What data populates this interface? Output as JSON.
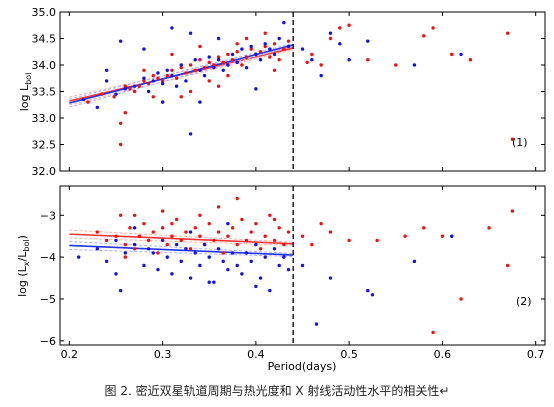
{
  "caption": "图 2. 密近双星轨道周期与热光度和 X 射线活动性水平的相关性↵",
  "colors": {
    "series_a": "#ee1111",
    "series_b": "#1111ee",
    "fit_a": "#ff3333",
    "fit_b": "#2233ee",
    "fit_band_a": "#ffaaaa",
    "fit_band_b": "#aab0ff",
    "cutoff": "#000000"
  },
  "chart_data": [
    {
      "type": "scatter",
      "panel_label": "(1)",
      "xlabel": "",
      "ylabel": "log L_bol",
      "xlim": [
        0.19,
        0.71
      ],
      "ylim": [
        32.0,
        35.0
      ],
      "yticks": [
        "32.0",
        "32.5",
        "33.0",
        "33.5",
        "34.0",
        "34.5",
        "35.0"
      ],
      "xticks": [],
      "cutoff_x": 0.44,
      "series": [
        {
          "color": "red",
          "x": [
            0.22,
            0.235,
            0.248,
            0.255,
            0.26,
            0.265,
            0.27,
            0.275,
            0.28,
            0.285,
            0.29,
            0.295,
            0.3,
            0.305,
            0.31,
            0.315,
            0.32,
            0.325,
            0.33,
            0.335,
            0.34,
            0.345,
            0.35,
            0.355,
            0.36,
            0.365,
            0.37,
            0.375,
            0.38,
            0.385,
            0.39,
            0.395,
            0.4,
            0.405,
            0.41,
            0.415,
            0.42,
            0.425,
            0.43,
            0.435,
            0.455,
            0.46,
            0.47,
            0.48,
            0.49,
            0.5,
            0.52,
            0.55,
            0.58,
            0.59,
            0.61,
            0.63,
            0.67,
            0.675,
            0.3,
            0.32,
            0.34,
            0.36,
            0.38,
            0.26,
            0.28,
            0.33,
            0.37,
            0.41,
            0.255,
            0.29,
            0.31,
            0.35,
            0.39,
            0.42
          ],
          "y": [
            33.3,
            33.45,
            33.4,
            32.9,
            33.6,
            33.55,
            33.5,
            33.6,
            33.7,
            33.65,
            33.8,
            33.75,
            33.7,
            33.8,
            33.9,
            33.75,
            33.95,
            33.85,
            34.0,
            33.9,
            34.1,
            33.95,
            34.05,
            34.0,
            34.15,
            34.05,
            34.2,
            34.1,
            34.25,
            34.0,
            34.15,
            34.3,
            34.2,
            34.25,
            34.35,
            34.15,
            34.4,
            34.1,
            34.3,
            34.45,
            34.05,
            34.2,
            34.0,
            34.5,
            34.7,
            34.75,
            34.1,
            34.0,
            34.55,
            34.7,
            34.2,
            34.1,
            34.6,
            32.6,
            33.3,
            33.4,
            34.35,
            33.6,
            34.4,
            33.1,
            33.9,
            33.5,
            33.8,
            34.6,
            32.5,
            33.4,
            34.2,
            33.7,
            34.5,
            33.9
          ]
        },
        {
          "color": "blue",
          "x": [
            0.215,
            0.23,
            0.24,
            0.25,
            0.255,
            0.26,
            0.27,
            0.28,
            0.285,
            0.29,
            0.295,
            0.3,
            0.305,
            0.31,
            0.315,
            0.32,
            0.325,
            0.33,
            0.335,
            0.34,
            0.345,
            0.35,
            0.355,
            0.36,
            0.365,
            0.37,
            0.375,
            0.38,
            0.385,
            0.39,
            0.395,
            0.4,
            0.405,
            0.41,
            0.415,
            0.42,
            0.425,
            0.43,
            0.435,
            0.45,
            0.46,
            0.47,
            0.48,
            0.49,
            0.5,
            0.52,
            0.57,
            0.62,
            0.3,
            0.34,
            0.33,
            0.24,
            0.28,
            0.36,
            0.4,
            0.31
          ],
          "y": [
            33.35,
            33.2,
            33.7,
            33.45,
            34.45,
            33.55,
            33.6,
            33.75,
            33.5,
            33.7,
            33.85,
            33.65,
            33.9,
            33.8,
            33.6,
            34.0,
            33.7,
            32.7,
            34.1,
            33.9,
            33.8,
            34.15,
            33.95,
            34.1,
            33.9,
            34.0,
            34.2,
            34.05,
            34.3,
            33.95,
            34.35,
            34.2,
            34.1,
            34.4,
            34.3,
            34.2,
            34.5,
            34.8,
            34.35,
            34.3,
            34.1,
            33.8,
            34.6,
            34.4,
            34.1,
            34.45,
            34.0,
            34.2,
            33.3,
            33.3,
            34.6,
            33.9,
            34.3,
            34.5,
            33.55,
            34.7
          ]
        }
      ],
      "fits": [
        {
          "color": "red",
          "x": [
            0.2,
            0.44
          ],
          "y": [
            33.32,
            34.32
          ]
        },
        {
          "color": "blue",
          "x": [
            0.2,
            0.44
          ],
          "y": [
            33.28,
            34.38
          ]
        }
      ]
    },
    {
      "type": "scatter",
      "panel_label": "(2)",
      "xlabel": "Period(days)",
      "ylabel": "log (L_x/L_bol)",
      "xlim": [
        0.19,
        0.71
      ],
      "ylim": [
        -6.1,
        -2.3
      ],
      "yticks": [
        "−6",
        "−5",
        "−4",
        "−3"
      ],
      "xticks": [
        "0.2",
        "0.3",
        "0.4",
        "0.5",
        "0.6",
        "0.7"
      ],
      "cutoff_x": 0.44,
      "series": [
        {
          "color": "red",
          "x": [
            0.23,
            0.24,
            0.25,
            0.255,
            0.26,
            0.265,
            0.27,
            0.275,
            0.28,
            0.285,
            0.29,
            0.295,
            0.3,
            0.305,
            0.31,
            0.315,
            0.32,
            0.325,
            0.33,
            0.335,
            0.34,
            0.345,
            0.35,
            0.355,
            0.36,
            0.365,
            0.37,
            0.375,
            0.38,
            0.385,
            0.39,
            0.395,
            0.4,
            0.405,
            0.41,
            0.415,
            0.42,
            0.425,
            0.43,
            0.435,
            0.45,
            0.46,
            0.47,
            0.48,
            0.5,
            0.53,
            0.56,
            0.58,
            0.6,
            0.62,
            0.65,
            0.67,
            0.675,
            0.59,
            0.27,
            0.31,
            0.36,
            0.26,
            0.3,
            0.34,
            0.38,
            0.42
          ],
          "y": [
            -3.4,
            -3.6,
            -3.5,
            -3.0,
            -3.7,
            -3.3,
            -3.8,
            -3.5,
            -3.2,
            -3.6,
            -3.4,
            -3.9,
            -3.3,
            -3.7,
            -3.5,
            -3.1,
            -3.6,
            -3.4,
            -3.8,
            -3.3,
            -3.5,
            -3.7,
            -3.2,
            -3.6,
            -3.4,
            -3.9,
            -3.5,
            -3.3,
            -3.7,
            -3.1,
            -3.6,
            -3.4,
            -3.2,
            -3.8,
            -3.5,
            -3.0,
            -3.6,
            -3.3,
            -3.7,
            -3.4,
            -3.5,
            -3.7,
            -3.2,
            -3.4,
            -3.6,
            -3.6,
            -3.5,
            -3.3,
            -3.5,
            -5.0,
            -3.3,
            -4.2,
            -2.9,
            -5.8,
            -3.0,
            -3.2,
            -2.8,
            -4.0,
            -2.9,
            -3.0,
            -2.6,
            -3.1
          ]
        },
        {
          "color": "blue",
          "x": [
            0.21,
            0.23,
            0.24,
            0.25,
            0.255,
            0.26,
            0.27,
            0.28,
            0.285,
            0.29,
            0.295,
            0.3,
            0.305,
            0.31,
            0.315,
            0.32,
            0.325,
            0.33,
            0.335,
            0.34,
            0.345,
            0.35,
            0.355,
            0.36,
            0.365,
            0.37,
            0.375,
            0.38,
            0.385,
            0.39,
            0.395,
            0.4,
            0.405,
            0.41,
            0.415,
            0.42,
            0.425,
            0.43,
            0.435,
            0.45,
            0.465,
            0.48,
            0.52,
            0.525,
            0.57,
            0.61,
            0.27,
            0.33,
            0.37,
            0.25,
            0.35,
            0.4
          ],
          "y": [
            -4.0,
            -3.8,
            -4.1,
            -3.6,
            -4.8,
            -3.9,
            -3.7,
            -4.2,
            -3.8,
            -3.9,
            -4.3,
            -3.6,
            -4.0,
            -4.4,
            -3.7,
            -4.1,
            -3.8,
            -4.5,
            -3.9,
            -4.2,
            -3.7,
            -4.0,
            -4.6,
            -3.8,
            -4.1,
            -4.3,
            -3.9,
            -4.2,
            -4.4,
            -3.9,
            -4.1,
            -3.7,
            -4.5,
            -4.0,
            -4.8,
            -3.8,
            -4.2,
            -4.0,
            -4.3,
            -4.2,
            -5.6,
            -4.5,
            -4.8,
            -4.9,
            -4.1,
            -3.5,
            -3.3,
            -3.4,
            -3.2,
            -4.4,
            -4.6,
            -4.7
          ]
        }
      ],
      "fits": [
        {
          "color": "red",
          "x": [
            0.2,
            0.44
          ],
          "y": [
            -3.45,
            -3.68
          ]
        },
        {
          "color": "blue",
          "x": [
            0.2,
            0.44
          ],
          "y": [
            -3.72,
            -3.95
          ]
        }
      ]
    }
  ]
}
